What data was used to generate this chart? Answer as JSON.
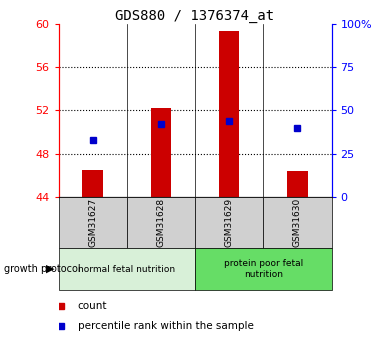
{
  "title": "GDS880 / 1376374_at",
  "samples": [
    "GSM31627",
    "GSM31628",
    "GSM31629",
    "GSM31630"
  ],
  "bar_bottoms": [
    44,
    44,
    44,
    44
  ],
  "bar_tops": [
    46.5,
    52.2,
    59.4,
    46.4
  ],
  "percentile_values": [
    33,
    42,
    44,
    40
  ],
  "ylim_left": [
    44,
    60
  ],
  "ylim_right": [
    0,
    100
  ],
  "yticks_left": [
    44,
    48,
    52,
    56,
    60
  ],
  "yticks_right": [
    0,
    25,
    50,
    75,
    100
  ],
  "ytick_labels_right": [
    "0",
    "25",
    "50",
    "75",
    "100%"
  ],
  "bar_color": "#cc0000",
  "point_color": "#0000cc",
  "grid_ticks": [
    48,
    52,
    56
  ],
  "group1_label": "normal fetal nutrition",
  "group2_label": "protein poor fetal\nnutrition",
  "group1_color": "#d8f0d8",
  "group2_color": "#66dd66",
  "protocol_label": "growth protocol",
  "legend_count_label": "count",
  "legend_pct_label": "percentile rank within the sample",
  "title_fontsize": 10,
  "axis_tick_fontsize": 8,
  "label_fontsize": 7,
  "bar_width": 0.3
}
